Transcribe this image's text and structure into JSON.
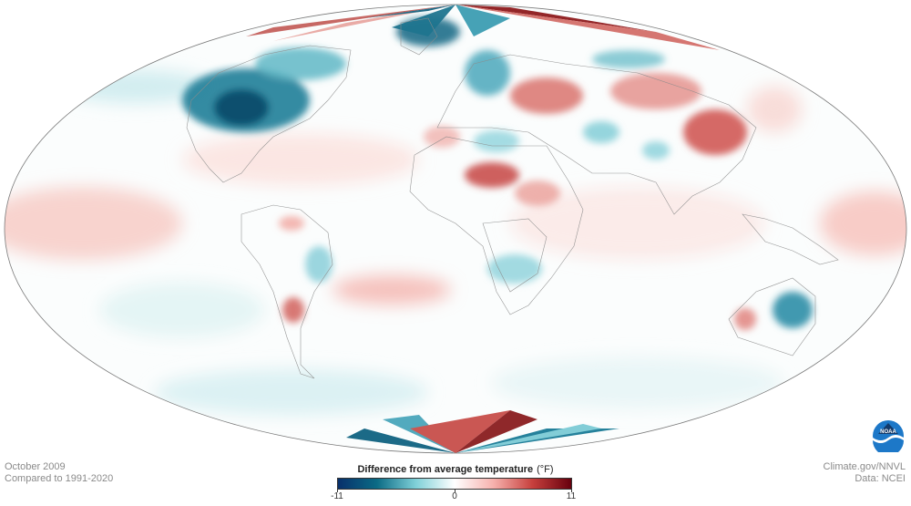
{
  "map": {
    "projection": "Mollweide",
    "subject": "Difference from average temperature"
  },
  "footer": {
    "date": "October 2009",
    "baseline": "Compared to 1991-2020",
    "source": "Climate.gov/NNVL",
    "data_credit": "Data: NCEI"
  },
  "legend": {
    "title": "Difference from average temperature",
    "unit": "(°F)",
    "min_label": "-11",
    "mid_label": "0",
    "max_label": "11",
    "min": -11,
    "max": 11,
    "colors": [
      "#08306b",
      "#0b6b85",
      "#7fd0d8",
      "#ffffff",
      "#f6b1ad",
      "#c7403d",
      "#67000d"
    ]
  },
  "logo": {
    "icon": "noaa-logo-icon",
    "text": "NOAA",
    "color": "#1d78c8"
  }
}
